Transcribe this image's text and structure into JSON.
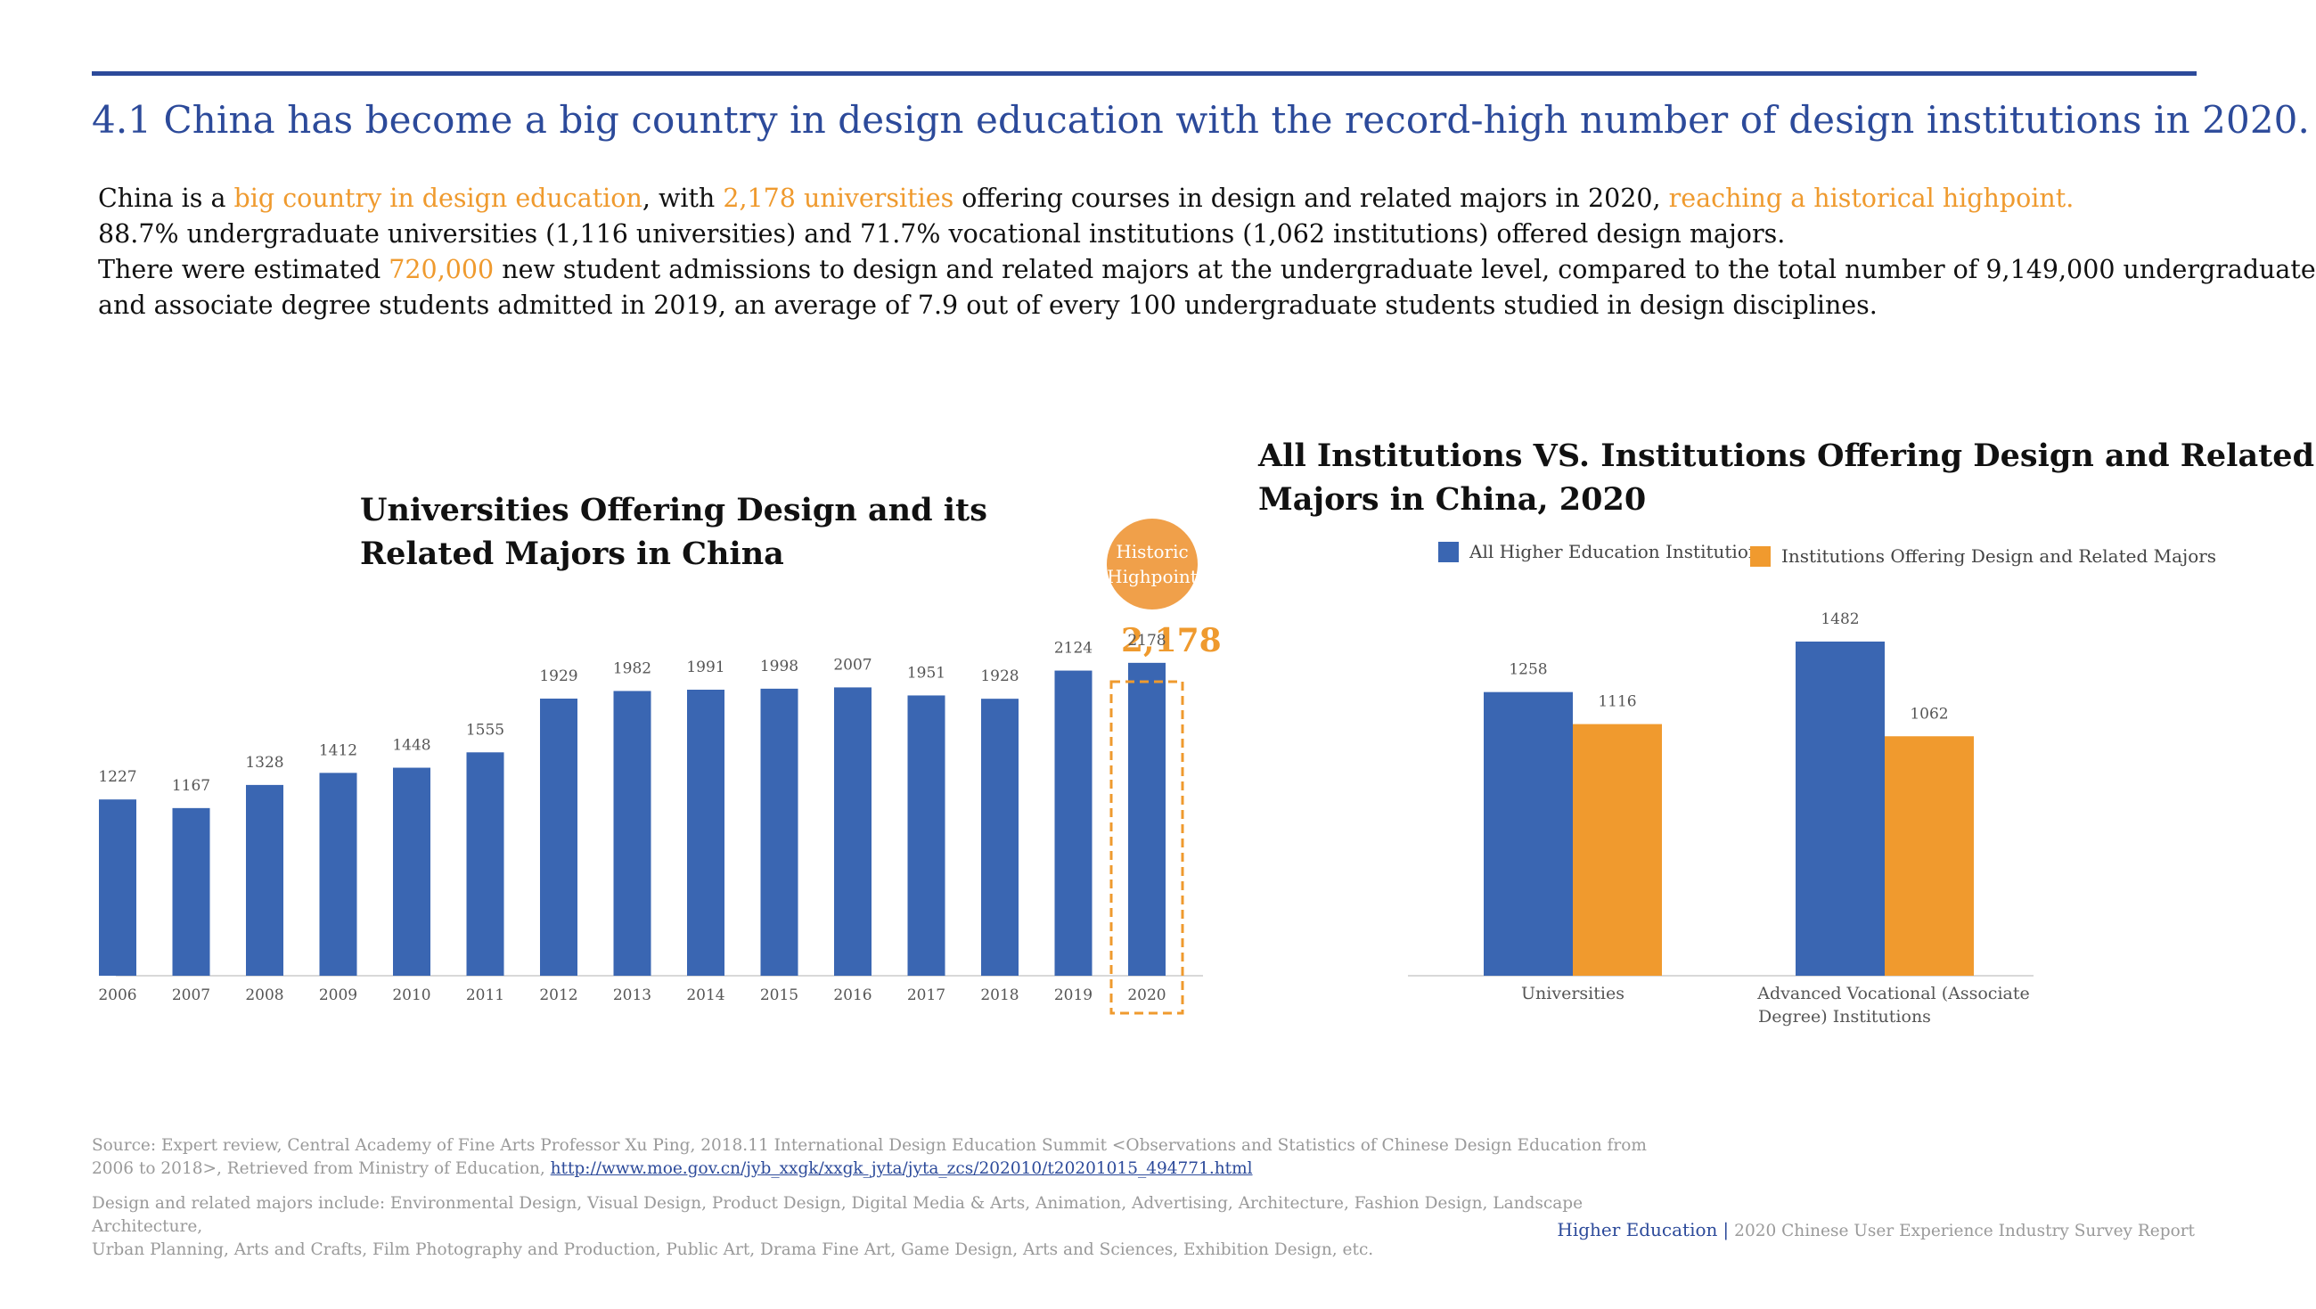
{
  "header": {
    "title": "4.1 China has become a big country in design education with the record-high number of design institutions in 2020."
  },
  "intro": {
    "l1_a": "China is a ",
    "l1_b": "big country in design education",
    "l1_c": ", with ",
    "l1_d": "2,178 universities",
    "l1_e": " offering courses in design and related majors in 2020, ",
    "l1_f": "reaching a historical highpoint.",
    "l2": "88.7% undergraduate universities (1,116 universities) and 71.7% vocational institutions (1,062 institutions) offered design majors.",
    "l3_a": "There were estimated ",
    "l3_b": "720,000",
    "l3_c": " new student admissions to design and related majors at the undergraduate level, compared to the total number of 9,149,000 undergraduate",
    "l4": "and associate degree students admitted in 2019, an average of 7.9 out of every 100 undergraduate students studied in design disciplines."
  },
  "left_chart": {
    "title_line1": "Universities Offering Design and its",
    "title_line2": "Related Majors in China",
    "callout_line1": "Historic",
    "callout_line2": "Highpoint",
    "callout_value": "2,178"
  },
  "right_chart": {
    "title_line1": "All Institutions VS. Institutions Offering Design and Related",
    "title_line2": "Majors in China, 2020",
    "legend": [
      "All Higher Education Institutions",
      "Institutions Offering Design and Related Majors"
    ],
    "category_line1": [
      "Universities",
      "Advanced Vocational (Associate"
    ],
    "category_line2": [
      "",
      "Degree) Institutions"
    ]
  },
  "chart_data": [
    {
      "type": "bar",
      "title": "Universities Offering Design and its Related Majors in China",
      "categories": [
        "2006",
        "2007",
        "2008",
        "2009",
        "2010",
        "2011",
        "2012",
        "2013",
        "2014",
        "2015",
        "2016",
        "2017",
        "2018",
        "2019",
        "2020"
      ],
      "values": [
        1227,
        1167,
        1328,
        1412,
        1448,
        1555,
        1929,
        1982,
        1991,
        1998,
        2007,
        1951,
        1928,
        2124,
        2178
      ],
      "ylim": [
        0,
        2450
      ],
      "highlight": "2020",
      "color": "#3a66b2"
    },
    {
      "type": "bar",
      "title": "All Institutions VS. Institutions Offering Design and Related Majors in China, 2020",
      "categories": [
        "Universities",
        "Advanced Vocational (Associate Degree) Institutions"
      ],
      "series": [
        {
          "name": "All Higher Education Institutions",
          "values": [
            1258,
            1482
          ],
          "color": "#3a66b2"
        },
        {
          "name": "Institutions Offering Design and Related Majors",
          "values": [
            1116,
            1062
          ],
          "color": "#f09a2e"
        }
      ],
      "ylim": [
        0,
        1640
      ]
    }
  ],
  "footer": {
    "source_line1": "Source: Expert review, Central Academy of Fine Arts Professor Xu Ping, 2018.11 International Design Education Summit <Observations and Statistics of Chinese Design Education from",
    "source_line2": "2006 to 2018>, Retrieved from Ministry of Education, ",
    "source_link": "http://www.moe.gov.cn/jyb_xxgk/xxgk_jyta/jyta_zcs/202010/t20201015_494771.html",
    "note_line1": "Design and related majors include: Environmental Design, Visual Design, Product Design, Digital Media & Arts, Animation, Advertising, Architecture, Fashion Design, Landscape Architecture,",
    "note_line2": "Urban Planning, Arts and Crafts, Film Photography and Production, Public Art, Drama Fine Art, Game Design, Arts and Sciences, Exhibition Design, etc.",
    "section": "Higher Education",
    "separator": "|",
    "report": "2020 Chinese User Experience Industry Survey Report"
  }
}
